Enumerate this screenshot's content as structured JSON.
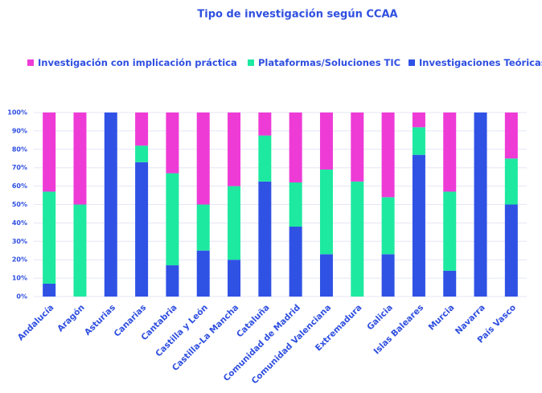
{
  "chart_data": {
    "type": "stacked_bar_100",
    "title": "Tipo de investigación según CCAA",
    "categories": [
      "Andalucía",
      "Aragón",
      "Asturias",
      "Canarias",
      "Cantabria",
      "Castilla y León",
      "Castilla-La Mancha",
      "Cataluña",
      "Comunidad de Madrid",
      "Comunidad Valenciana",
      "Extremadura",
      "Galicia",
      "Islas Baleares",
      "Murcia",
      "Navarra",
      "País Vasco"
    ],
    "series": [
      {
        "name": "Investigación con implicación práctica",
        "color": "#ee3bd6",
        "values": [
          43,
          50,
          0,
          18,
          33,
          50,
          40,
          12.5,
          38,
          31,
          37.5,
          46,
          8,
          43,
          0,
          25
        ]
      },
      {
        "name": "Plataformas/Soluciones TIC",
        "color": "#1de9a0",
        "values": [
          50,
          50,
          0,
          9,
          50,
          25,
          40,
          25,
          24,
          46,
          62.5,
          31,
          15,
          43,
          0,
          25
        ]
      },
      {
        "name": "Investigaciones Teóricas",
        "color": "#2f52e5",
        "values": [
          7,
          0,
          100,
          73,
          17,
          25,
          20,
          62.5,
          38,
          23,
          0,
          23,
          77,
          14,
          100,
          50
        ]
      }
    ],
    "ylim": [
      0,
      100
    ],
    "yticks": [
      {
        "value": 0,
        "label": "0%"
      },
      {
        "value": 10,
        "label": "10%"
      },
      {
        "value": 20,
        "label": "20%"
      },
      {
        "value": 30,
        "label": "30%"
      },
      {
        "value": 40,
        "label": "40%"
      },
      {
        "value": 50,
        "label": "50%"
      },
      {
        "value": 60,
        "label": "60%"
      },
      {
        "value": 70,
        "label": "70%"
      },
      {
        "value": 80,
        "label": "80%"
      },
      {
        "value": 90,
        "label": "90%"
      },
      {
        "value": 100,
        "label": "100%"
      }
    ],
    "grid": true,
    "legend": "top"
  }
}
